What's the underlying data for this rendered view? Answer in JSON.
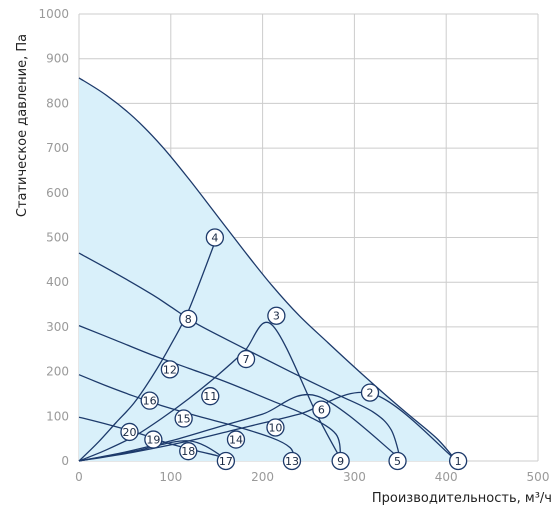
{
  "chart_data": {
    "type": "line",
    "xlabel": "Производительность, м³/ч",
    "ylabel": "Статическое давление, Па",
    "xlim": [
      0,
      500
    ],
    "ylim": [
      0,
      1000
    ],
    "x_ticks": [
      "0",
      "100",
      "200",
      "300",
      "400",
      "500"
    ],
    "y_ticks": [
      "0",
      "100",
      "200",
      "300",
      "400",
      "500",
      "600",
      "700",
      "800",
      "900",
      "1000"
    ],
    "grid": true,
    "colors": {
      "fill": "#d9f0fa",
      "line": "#1d3a6b",
      "grid": "#cccccc",
      "marker_fill": "#ffffff"
    },
    "fan_curves": [
      {
        "x": [
          0,
          30,
          60,
          90,
          120,
          150,
          180,
          210,
          240,
          270,
          300,
          330,
          360,
          390,
          410
        ],
        "y": [
          857,
          818,
          768,
          705,
          630,
          550,
          470,
          393,
          325,
          267,
          210,
          155,
          102,
          50,
          3
        ]
      },
      {
        "x": [
          0,
          40,
          80,
          100,
          130,
          180,
          230,
          280,
          320,
          340,
          350
        ],
        "y": [
          465,
          420,
          372,
          345,
          305,
          252,
          200,
          150,
          110,
          70,
          5
        ]
      },
      {
        "x": [
          0,
          40,
          80,
          120,
          160,
          210,
          250,
          280,
          285
        ],
        "y": [
          303,
          270,
          237,
          207,
          177,
          135,
          100,
          60,
          5
        ]
      },
      {
        "x": [
          0,
          30,
          60,
          90,
          130,
          170,
          210,
          230,
          235
        ],
        "y": [
          193,
          168,
          145,
          124,
          100,
          78,
          52,
          30,
          5
        ]
      },
      {
        "x": [
          0,
          20,
          40,
          60,
          80,
          100,
          130,
          150,
          160
        ],
        "y": [
          98,
          88,
          77,
          65,
          52,
          38,
          22,
          12,
          5
        ]
      }
    ],
    "system_curves": [
      {
        "x": [
          0,
          60,
          120,
          180,
          240,
          320,
          410
        ],
        "y": [
          0,
          20,
          45,
          75,
          105,
          150,
          3
        ]
      },
      {
        "x": [
          0,
          50,
          100,
          150,
          200,
          260,
          350
        ],
        "y": [
          0,
          20,
          45,
          75,
          105,
          145,
          5
        ]
      },
      {
        "x": [
          0,
          30,
          60,
          90,
          120,
          150,
          180,
          210,
          260,
          285
        ],
        "y": [
          0,
          25,
          55,
          95,
          140,
          190,
          245,
          305,
          100,
          5
        ]
      },
      {
        "x": [
          0,
          20,
          40,
          60,
          80,
          100,
          120,
          150
        ],
        "y": [
          0,
          40,
          85,
          130,
          190,
          260,
          340,
          500
        ]
      },
      {
        "x": [
          0,
          60,
          120,
          160
        ],
        "y": [
          0,
          22,
          45,
          5
        ]
      }
    ],
    "markers": [
      {
        "label": "1",
        "x": 413,
        "y": 0
      },
      {
        "label": "2",
        "x": 317,
        "y": 153
      },
      {
        "label": "3",
        "x": 215,
        "y": 325
      },
      {
        "label": "4",
        "x": 148,
        "y": 500
      },
      {
        "label": "5",
        "x": 347,
        "y": 0
      },
      {
        "label": "6",
        "x": 264,
        "y": 115
      },
      {
        "label": "7",
        "x": 182,
        "y": 228
      },
      {
        "label": "8",
        "x": 119,
        "y": 318
      },
      {
        "label": "9",
        "x": 285,
        "y": 0
      },
      {
        "label": "10",
        "x": 214,
        "y": 75
      },
      {
        "label": "11",
        "x": 143,
        "y": 145
      },
      {
        "label": "12",
        "x": 99,
        "y": 205
      },
      {
        "label": "13",
        "x": 232,
        "y": 0
      },
      {
        "label": "14",
        "x": 171,
        "y": 48
      },
      {
        "label": "15",
        "x": 114,
        "y": 95
      },
      {
        "label": "16",
        "x": 77,
        "y": 135
      },
      {
        "label": "17",
        "x": 160,
        "y": 0
      },
      {
        "label": "18",
        "x": 119,
        "y": 22
      },
      {
        "label": "19",
        "x": 81,
        "y": 48
      },
      {
        "label": "20",
        "x": 55,
        "y": 65
      }
    ]
  }
}
